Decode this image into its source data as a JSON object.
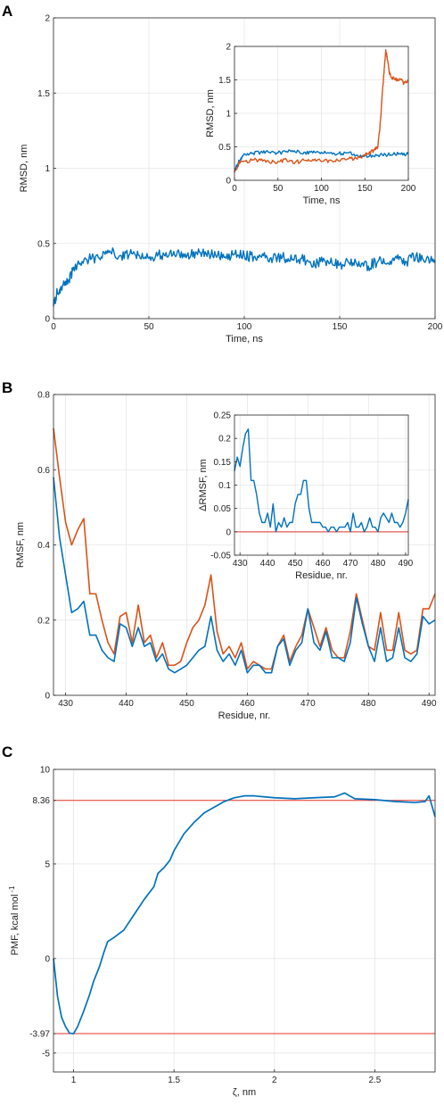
{
  "colors": {
    "blue": "#0072BD",
    "orange": "#D95319",
    "red": "#E8312A"
  },
  "chart_data": [
    {
      "panel": "A",
      "type": "line",
      "xlabel": "Time, ns",
      "ylabel": "RMSD, nm",
      "xlim": [
        0,
        200
      ],
      "ylim": [
        0,
        2
      ],
      "xticks": [
        "0",
        "50",
        "100",
        "150",
        "200"
      ],
      "yticks": [
        "0",
        "0.5",
        "1",
        "1.5",
        "2"
      ],
      "series": [
        {
          "color": "blue",
          "x": [
            0,
            2,
            5,
            8,
            10,
            15,
            20,
            25,
            30,
            35,
            40,
            45,
            50,
            55,
            60,
            65,
            70,
            75,
            80,
            85,
            90,
            95,
            100,
            105,
            110,
            115,
            120,
            125,
            130,
            135,
            140,
            145,
            150,
            155,
            160,
            165,
            170,
            175,
            180,
            185,
            190,
            195,
            200
          ],
          "y": [
            0.08,
            0.18,
            0.22,
            0.25,
            0.32,
            0.38,
            0.4,
            0.41,
            0.44,
            0.42,
            0.43,
            0.42,
            0.4,
            0.43,
            0.41,
            0.45,
            0.42,
            0.44,
            0.43,
            0.42,
            0.41,
            0.43,
            0.42,
            0.41,
            0.42,
            0.4,
            0.41,
            0.39,
            0.4,
            0.36,
            0.38,
            0.37,
            0.36,
            0.37,
            0.38,
            0.35,
            0.38,
            0.37,
            0.4,
            0.38,
            0.42,
            0.38,
            0.39
          ]
        }
      ]
    },
    {
      "panel": "A-inset",
      "type": "line",
      "xlabel": "Time, ns",
      "ylabel": "RMSD, nm",
      "xlim": [
        0,
        200
      ],
      "ylim": [
        0,
        2
      ],
      "xticks": [
        "0",
        "50",
        "100",
        "150",
        "200"
      ],
      "yticks": [
        "0",
        "0.5",
        "1",
        "1.5",
        "2"
      ],
      "series": [
        {
          "color": "blue",
          "x": [
            0,
            5,
            10,
            20,
            30,
            40,
            50,
            60,
            70,
            80,
            90,
            100,
            110,
            120,
            130,
            140,
            150,
            160,
            170,
            180,
            190,
            200
          ],
          "y": [
            0.12,
            0.3,
            0.37,
            0.4,
            0.42,
            0.42,
            0.41,
            0.43,
            0.42,
            0.42,
            0.41,
            0.42,
            0.41,
            0.4,
            0.41,
            0.37,
            0.37,
            0.36,
            0.38,
            0.38,
            0.4,
            0.39
          ]
        },
        {
          "color": "orange",
          "x": [
            0,
            5,
            10,
            20,
            30,
            40,
            50,
            60,
            70,
            80,
            90,
            100,
            110,
            120,
            130,
            140,
            150,
            155,
            160,
            165,
            168,
            170,
            172,
            174,
            176,
            178,
            180,
            185,
            190,
            195,
            200
          ],
          "y": [
            0.12,
            0.25,
            0.28,
            0.3,
            0.3,
            0.27,
            0.28,
            0.3,
            0.27,
            0.3,
            0.31,
            0.28,
            0.3,
            0.29,
            0.32,
            0.33,
            0.38,
            0.42,
            0.44,
            0.5,
            0.9,
            1.3,
            1.6,
            1.95,
            1.8,
            1.62,
            1.55,
            1.5,
            1.52,
            1.45,
            1.5
          ]
        }
      ]
    },
    {
      "panel": "B",
      "type": "line",
      "xlabel": "Residue, nr.",
      "ylabel": "RMSF, nm",
      "xlim": [
        428,
        491
      ],
      "ylim": [
        0,
        0.8
      ],
      "xticks": [
        "430",
        "440",
        "450",
        "460",
        "470",
        "480",
        "490"
      ],
      "yticks": [
        "0",
        "0.2",
        "0.4",
        "0.6",
        "0.8"
      ],
      "x": [
        428,
        429,
        430,
        431,
        432,
        433,
        434,
        435,
        436,
        437,
        438,
        439,
        440,
        441,
        442,
        443,
        444,
        445,
        446,
        447,
        448,
        449,
        450,
        451,
        452,
        453,
        454,
        455,
        456,
        457,
        458,
        459,
        460,
        461,
        462,
        463,
        464,
        465,
        466,
        467,
        468,
        469,
        470,
        471,
        472,
        473,
        474,
        475,
        476,
        477,
        478,
        479,
        480,
        481,
        482,
        483,
        484,
        485,
        486,
        487,
        488,
        489,
        490,
        491
      ],
      "series": [
        {
          "color": "orange",
          "values": [
            0.71,
            0.58,
            0.46,
            0.4,
            0.44,
            0.47,
            0.27,
            0.27,
            0.2,
            0.14,
            0.11,
            0.21,
            0.22,
            0.14,
            0.24,
            0.14,
            0.16,
            0.1,
            0.14,
            0.08,
            0.08,
            0.09,
            0.14,
            0.18,
            0.2,
            0.24,
            0.32,
            0.17,
            0.11,
            0.13,
            0.1,
            0.14,
            0.07,
            0.09,
            0.08,
            0.07,
            0.07,
            0.13,
            0.16,
            0.09,
            0.13,
            0.16,
            0.23,
            0.18,
            0.13,
            0.18,
            0.12,
            0.1,
            0.1,
            0.17,
            0.27,
            0.2,
            0.13,
            0.12,
            0.22,
            0.12,
            0.12,
            0.22,
            0.12,
            0.11,
            0.12,
            0.23,
            0.23,
            0.27
          ]
        },
        {
          "color": "blue",
          "values": [
            0.58,
            0.42,
            0.32,
            0.22,
            0.23,
            0.25,
            0.16,
            0.16,
            0.12,
            0.1,
            0.09,
            0.19,
            0.18,
            0.13,
            0.18,
            0.13,
            0.14,
            0.09,
            0.11,
            0.07,
            0.06,
            0.07,
            0.08,
            0.1,
            0.12,
            0.13,
            0.21,
            0.12,
            0.09,
            0.11,
            0.08,
            0.12,
            0.06,
            0.08,
            0.08,
            0.06,
            0.06,
            0.13,
            0.15,
            0.08,
            0.12,
            0.14,
            0.23,
            0.14,
            0.12,
            0.17,
            0.1,
            0.1,
            0.09,
            0.14,
            0.26,
            0.19,
            0.13,
            0.09,
            0.18,
            0.09,
            0.1,
            0.18,
            0.1,
            0.09,
            0.11,
            0.21,
            0.19,
            0.2
          ]
        }
      ]
    },
    {
      "panel": "B-inset",
      "type": "line",
      "xlabel": "Residue, nr.",
      "ylabel": "ΔRMSF, nm",
      "xlim": [
        428,
        491
      ],
      "ylim": [
        -0.05,
        0.25
      ],
      "xticks": [
        "430",
        "440",
        "450",
        "460",
        "470",
        "480",
        "490"
      ],
      "yticks": [
        "-0.05",
        "0",
        "0.05",
        "0.1",
        "0.15",
        "0.2",
        "0.25"
      ],
      "reference_line": 0,
      "x": [
        428,
        429,
        430,
        431,
        432,
        433,
        434,
        435,
        436,
        437,
        438,
        439,
        440,
        441,
        442,
        443,
        444,
        445,
        446,
        447,
        448,
        449,
        450,
        451,
        452,
        453,
        454,
        455,
        456,
        457,
        458,
        459,
        460,
        461,
        462,
        463,
        464,
        465,
        466,
        467,
        468,
        469,
        470,
        471,
        472,
        473,
        474,
        475,
        476,
        477,
        478,
        479,
        480,
        481,
        482,
        483,
        484,
        485,
        486,
        487,
        488,
        489,
        490,
        491
      ],
      "series": [
        {
          "color": "blue",
          "values": [
            0.13,
            0.16,
            0.14,
            0.18,
            0.21,
            0.22,
            0.11,
            0.11,
            0.08,
            0.04,
            0.02,
            0.02,
            0.04,
            0.01,
            0.06,
            0.0,
            0.02,
            0.01,
            0.03,
            0.01,
            0.02,
            0.02,
            0.06,
            0.08,
            0.08,
            0.11,
            0.11,
            0.05,
            0.02,
            0.02,
            0.02,
            0.02,
            0.01,
            0.01,
            0.0,
            0.01,
            0.01,
            0.0,
            0.01,
            0.01,
            0.01,
            0.02,
            0.0,
            0.04,
            0.01,
            0.01,
            0.02,
            0.0,
            0.01,
            0.03,
            0.01,
            0.01,
            0.0,
            0.03,
            0.04,
            0.03,
            0.02,
            0.04,
            0.02,
            0.02,
            0.01,
            0.02,
            0.04,
            0.07
          ]
        }
      ]
    },
    {
      "panel": "C",
      "type": "line",
      "xlabel": "ζ, nm",
      "ylabel": "PMF, kcal mol",
      "ylabel_sup": "-1",
      "xlim": [
        0.9,
        2.8
      ],
      "ylim": [
        -6,
        10
      ],
      "xticks": [
        "1",
        "1.5",
        "2",
        "2.5"
      ],
      "yticks": [
        "-5",
        "-3.97",
        "0",
        "5",
        "8.36",
        "10"
      ],
      "reference_lines": [
        8.36,
        -3.97
      ],
      "series": [
        {
          "color": "blue",
          "x": [
            0.9,
            0.92,
            0.94,
            0.96,
            0.98,
            1.0,
            1.02,
            1.05,
            1.08,
            1.1,
            1.13,
            1.15,
            1.17,
            1.2,
            1.25,
            1.3,
            1.35,
            1.4,
            1.42,
            1.45,
            1.48,
            1.5,
            1.55,
            1.6,
            1.65,
            1.7,
            1.75,
            1.8,
            1.85,
            1.9,
            1.95,
            2.0,
            2.1,
            2.2,
            2.3,
            2.35,
            2.4,
            2.5,
            2.6,
            2.7,
            2.75,
            2.77,
            2.8
          ],
          "y": [
            0.0,
            -2.0,
            -3.1,
            -3.6,
            -3.95,
            -3.97,
            -3.6,
            -2.8,
            -1.9,
            -1.2,
            -0.4,
            0.3,
            0.9,
            1.1,
            1.5,
            2.3,
            3.1,
            3.8,
            4.5,
            4.8,
            5.2,
            5.7,
            6.6,
            7.2,
            7.7,
            8.0,
            8.3,
            8.5,
            8.6,
            8.6,
            8.55,
            8.5,
            8.45,
            8.5,
            8.55,
            8.75,
            8.45,
            8.4,
            8.3,
            8.25,
            8.3,
            8.6,
            7.5
          ]
        }
      ]
    }
  ]
}
